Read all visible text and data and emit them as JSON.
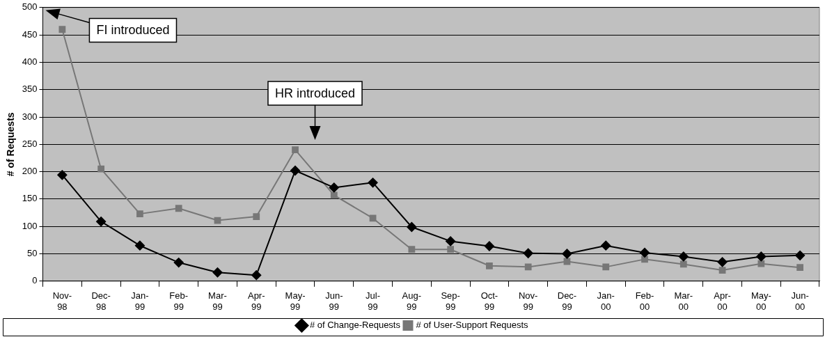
{
  "chart_data": {
    "type": "line",
    "ylabel": "# of Requests",
    "categories": [
      "Nov-98",
      "Dec-98",
      "Jan-99",
      "Feb-99",
      "Mar-99",
      "Apr-99",
      "May-99",
      "Jun-99",
      "Jul-99",
      "Aug-99",
      "Sep-99",
      "Oct-99",
      "Nov-99",
      "Dec-99",
      "Jan-00",
      "Feb-00",
      "Mar-00",
      "Apr-00",
      "May-00",
      "Jun-00"
    ],
    "series": [
      {
        "name": "# of Change-Requests",
        "color": "#000000",
        "marker": "diamond",
        "values": [
          194,
          109,
          65,
          34,
          16,
          11,
          202,
          171,
          180,
          99,
          73,
          64,
          51,
          50,
          65,
          52,
          45,
          35,
          45,
          47
        ]
      },
      {
        "name": "# of User-Support Requests",
        "color": "#777777",
        "marker": "square",
        "values": [
          460,
          205,
          123,
          133,
          111,
          118,
          240,
          157,
          115,
          58,
          58,
          28,
          26,
          36,
          26,
          40,
          31,
          20,
          32,
          25
        ]
      }
    ],
    "ylim": [
      0,
      500
    ],
    "yticks": [
      0,
      50,
      100,
      150,
      200,
      250,
      300,
      350,
      400,
      450,
      500
    ],
    "grid": "y",
    "legend": "bottom",
    "line_style": "solid",
    "annotations": [
      "FI introduced",
      "HR introduced"
    ]
  }
}
